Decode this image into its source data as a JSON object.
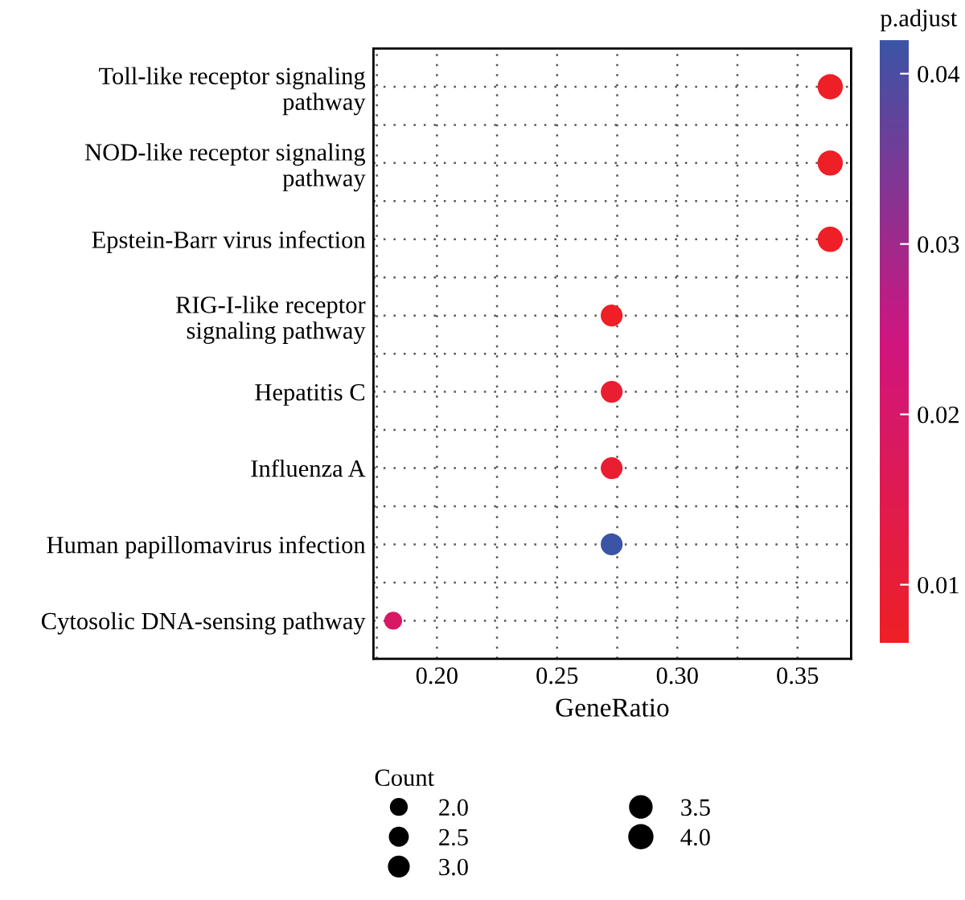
{
  "chart_data": {
    "type": "bubble",
    "orientation": "horizontal",
    "categories": [
      "Toll-like receptor signaling\npathway",
      "NOD-like receptor signaling\npathway",
      "Epstein-Barr virus infection",
      "RIG-I-like receptor\nsignaling pathway",
      "Hepatitis C",
      "Influenza A",
      "Human papillomavirus infection",
      "Cytosolic DNA-sensing pathway"
    ],
    "values": [
      0.3636,
      0.3636,
      0.3636,
      0.2727,
      0.2727,
      0.2727,
      0.2727,
      0.1818
    ],
    "sizes": [
      4,
      4,
      4,
      3,
      3,
      3,
      3,
      2
    ],
    "cvalues": [
      0.0068,
      0.0068,
      0.0068,
      0.0068,
      0.009,
      0.009,
      0.042,
      0.019
    ],
    "xlabel": "GeneRatio",
    "xlim": [
      0.1736,
      0.3723
    ],
    "xticks": [
      {
        "value": 0.2,
        "label": "0.20"
      },
      {
        "value": 0.25,
        "label": "0.25"
      },
      {
        "value": 0.3,
        "label": "0.30"
      },
      {
        "value": 0.35,
        "label": "0.35"
      }
    ],
    "clabel": "p.adjust",
    "clim": [
      0.0066,
      0.042
    ],
    "cticks": [
      {
        "value": 0.01,
        "label": "0.01"
      },
      {
        "value": 0.02,
        "label": "0.02"
      },
      {
        "value": 0.03,
        "label": "0.03"
      },
      {
        "value": 0.04,
        "label": "0.04"
      }
    ],
    "legend_title": "Count",
    "size_legend": [
      {
        "value": 2,
        "label": "2.0"
      },
      {
        "value": 2.5,
        "label": "2.5"
      },
      {
        "value": 3,
        "label": "3.0"
      },
      {
        "value": 3.5,
        "label": "3.5"
      },
      {
        "value": 4,
        "label": "4.0"
      }
    ],
    "grid": true
  }
}
